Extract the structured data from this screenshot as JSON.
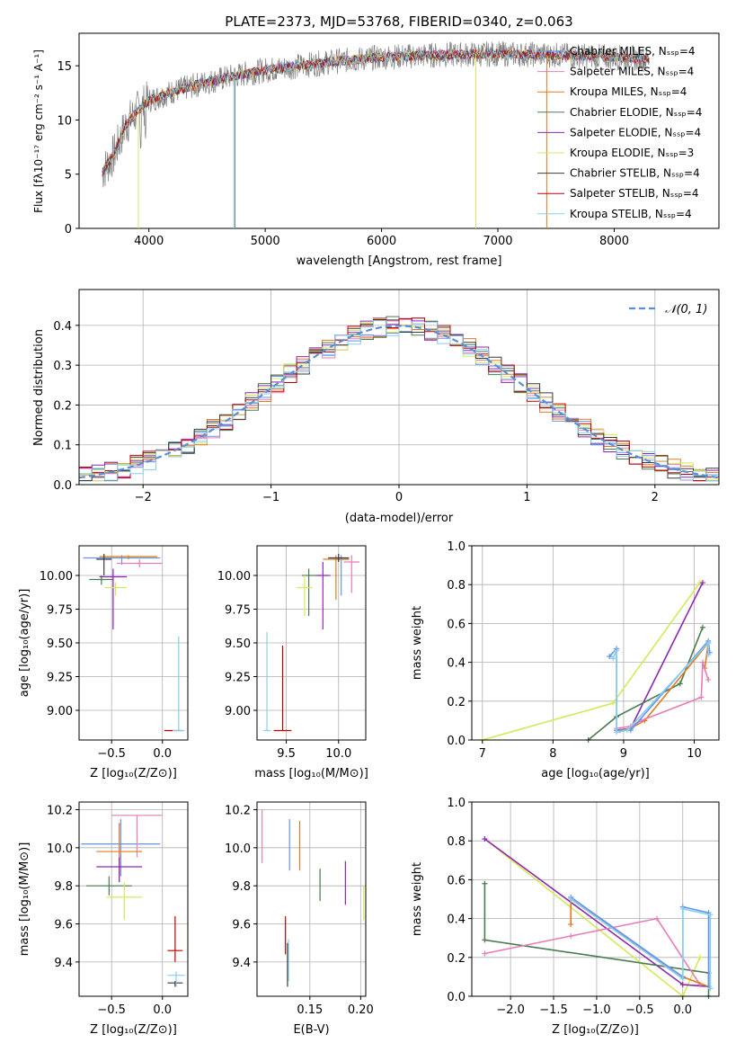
{
  "colors": {
    "chabrier_miles": "#6495ed",
    "salpeter_miles": "#e87db5",
    "kroupa_miles": "#e07b20",
    "chabrier_elodie": "#4b7b52",
    "salpeter_elodie": "#8e27b0",
    "kroupa_elodie": "#d6e85a",
    "chabrier_stelib": "#3a3a3a",
    "salpeter_stelib": "#c00000",
    "kroupa_stelib": "#87cfea",
    "data": "#808080",
    "gaussian": "#5a8fd8",
    "grid": "#b0b0b0"
  },
  "chart_data": [
    {
      "id": "spectrum",
      "type": "line",
      "title": "PLATE=2373, MJD=53768, FIBERID=0340, z=0.063",
      "xlabel": "wavelength [Angstrom, rest frame]",
      "ylabel": "Flux [fλ10⁻¹⁷ erg cm⁻² s⁻¹ A⁻¹]",
      "xlim": [
        3400,
        8900
      ],
      "ylim": [
        0,
        18
      ],
      "xticks": [
        "4000",
        "5000",
        "6000",
        "7000",
        "8000"
      ],
      "yticks": [
        "0",
        "5",
        "10",
        "15"
      ],
      "grid": false,
      "legend_position": "top-right",
      "legend": [
        "Chabrier MILES, Nₛₛₚ=4",
        "Salpeter MILES, Nₛₛₚ=4",
        "Kroupa MILES, Nₛₛₚ=4",
        "Chabrier ELODIE, Nₛₛₚ=4",
        "Salpeter ELODIE, Nₛₛₚ=4",
        "Kroupa ELODIE, Nₛₛₚ=3",
        "Chabrier STELIB, Nₛₛₚ=4",
        "Salpeter STELIB, Nₛₛₚ=4",
        "Kroupa STELIB, Nₛₛₚ=4"
      ],
      "continuum": {
        "x": [
          3600,
          3700,
          3800,
          3900,
          4000,
          4200,
          4500,
          4800,
          5000,
          5300,
          5600,
          6000,
          6500,
          7000,
          7500,
          8000,
          8300
        ],
        "y": [
          5.2,
          6.8,
          9.5,
          10.8,
          11.8,
          12.6,
          13.5,
          14.2,
          14.6,
          15.0,
          15.4,
          15.8,
          16.0,
          16.1,
          16.0,
          15.8,
          15.6
        ]
      }
    },
    {
      "id": "residuals",
      "type": "histogram",
      "xlabel": "(data-model)/error",
      "ylabel": "Normed distribution",
      "xlim": [
        -2.5,
        2.5
      ],
      "ylim": [
        0,
        0.49
      ],
      "xticks": [
        "−2",
        "−1",
        "0",
        "1",
        "2"
      ],
      "yticks": [
        "0.0",
        "0.1",
        "0.2",
        "0.3",
        "0.4"
      ],
      "grid": true,
      "legend": [
        "𝒩(0, 1)"
      ],
      "legend_position": "top-right",
      "bin_width": 0.1
    },
    {
      "id": "age_vs_Z",
      "type": "errorbar",
      "xlabel": "Z [log₁₀(Z/Z⊙)]",
      "ylabel": "age  [log₁₀(age/yr)]",
      "xlim": [
        -0.82,
        0.25
      ],
      "ylim": [
        8.78,
        10.22
      ],
      "xticks": [
        "−0.5",
        "0.0"
      ],
      "yticks": [
        "9.00",
        "9.25",
        "9.50",
        "9.75",
        "10.00"
      ],
      "grid": true
    },
    {
      "id": "age_vs_mass",
      "type": "errorbar",
      "xlabel": "mass [log₁₀(M/M⊙)]",
      "ylabel": "",
      "xlim": [
        9.22,
        10.26
      ],
      "ylim": [
        8.78,
        10.22
      ],
      "xticks": [
        "9.5",
        "10.0"
      ],
      "yticks": [
        "9.00",
        "9.25",
        "9.50",
        "9.75",
        "10.00"
      ],
      "grid": true
    },
    {
      "id": "weight_vs_age",
      "type": "line",
      "xlabel": "age  [log₁₀(age/yr)]",
      "ylabel": "mass weight",
      "xlim": [
        6.85,
        10.35
      ],
      "ylim": [
        0,
        1
      ],
      "xticks": [
        "7",
        "8",
        "9",
        "10"
      ],
      "yticks": [
        "0.0",
        "0.2",
        "0.4",
        "0.6",
        "0.8",
        "1.0"
      ],
      "grid": true,
      "series": [
        {
          "key": "kroupa_elodie",
          "x": [
            7.0,
            8.85,
            10.08
          ],
          "y": [
            0.0,
            0.19,
            0.81
          ]
        },
        {
          "key": "salpeter_elodie",
          "x": [
            8.9,
            9.1,
            10.12
          ],
          "y": [
            0.05,
            0.06,
            0.81
          ]
        },
        {
          "key": "chabrier_elodie",
          "x": [
            8.5,
            8.9,
            9.8,
            10.12
          ],
          "y": [
            0.0,
            0.12,
            0.29,
            0.58
          ]
        },
        {
          "key": "kroupa_miles",
          "x": [
            8.95,
            9.1,
            9.3,
            10.2,
            10.15
          ],
          "y": [
            0.05,
            0.06,
            0.1,
            0.5,
            0.37
          ]
        },
        {
          "key": "salpeter_miles",
          "x": [
            8.9,
            9.1,
            9.25,
            10.1,
            10.12,
            10.2
          ],
          "y": [
            0.06,
            0.07,
            0.1,
            0.22,
            0.4,
            0.31
          ]
        },
        {
          "key": "chabrier_miles",
          "x": [
            8.8,
            8.9,
            8.9,
            9.1,
            10.2,
            10.22
          ],
          "y": [
            0.43,
            0.47,
            0.05,
            0.05,
            0.51,
            0.45
          ]
        },
        {
          "key": "kroupa_stelib",
          "x": [
            8.85,
            8.9,
            8.9,
            9.05,
            10.2,
            10.2
          ],
          "y": [
            0.42,
            0.46,
            0.04,
            0.05,
            0.5,
            0.44
          ]
        }
      ]
    },
    {
      "id": "mass_vs_Z",
      "type": "errorbar",
      "xlabel": "Z [log₁₀(Z/Z⊙)]",
      "ylabel": "mass [log₁₀(M/M⊙)]",
      "xlim": [
        -0.82,
        0.25
      ],
      "ylim": [
        9.22,
        10.24
      ],
      "xticks": [
        "−0.5",
        "0.0"
      ],
      "yticks": [
        "9.4",
        "9.6",
        "9.8",
        "10.0",
        "10.2"
      ],
      "grid": true
    },
    {
      "id": "mass_vs_EBV",
      "type": "errorbar",
      "xlabel": "E(B-V)",
      "ylabel": "",
      "xlim": [
        0.098,
        0.205
      ],
      "ylim": [
        9.22,
        10.24
      ],
      "xticks": [
        "0.15",
        "0.20"
      ],
      "yticks": [
        "9.4",
        "9.6",
        "9.8",
        "10.0",
        "10.2"
      ],
      "grid": true
    },
    {
      "id": "weight_vs_Z",
      "type": "line",
      "xlabel": "Z [log₁₀(Z/Z⊙)]",
      "ylabel": "mass weight",
      "xlim": [
        -2.45,
        0.42
      ],
      "ylim": [
        0,
        1
      ],
      "xticks": [
        "−2.0",
        "−1.5",
        "−1.0",
        "−0.5",
        "0.0"
      ],
      "yticks": [
        "0.0",
        "0.2",
        "0.4",
        "0.6",
        "0.8",
        "1.0"
      ],
      "grid": true,
      "series": [
        {
          "key": "kroupa_elodie",
          "x": [
            -2.3,
            0.0,
            0.2
          ],
          "y": [
            0.81,
            0.0,
            0.2
          ]
        },
        {
          "key": "salpeter_elodie",
          "x": [
            -2.3,
            0.0,
            0.3
          ],
          "y": [
            0.81,
            0.06,
            0.05
          ]
        },
        {
          "key": "chabrier_elodie",
          "x": [
            -2.3,
            -2.3,
            0.3,
            0.3
          ],
          "y": [
            0.58,
            0.29,
            0.12,
            0.0
          ]
        },
        {
          "key": "salpeter_miles",
          "x": [
            -2.3,
            -1.3,
            -0.3,
            0.2
          ],
          "y": [
            0.22,
            0.31,
            0.4,
            0.06
          ]
        },
        {
          "key": "kroupa_miles",
          "x": [
            -1.3,
            -1.3,
            0.0,
            0.3
          ],
          "y": [
            0.37,
            0.5,
            0.1,
            0.05
          ]
        },
        {
          "key": "chabrier_miles",
          "x": [
            -1.3,
            0.0,
            0.0,
            0.3,
            0.3
          ],
          "y": [
            0.51,
            0.1,
            0.46,
            0.43,
            0.05
          ]
        },
        {
          "key": "kroupa_stelib",
          "x": [
            -1.3,
            0.0,
            0.0,
            0.32,
            0.32
          ],
          "y": [
            0.5,
            0.09,
            0.45,
            0.42,
            0.04
          ]
        }
      ]
    }
  ]
}
